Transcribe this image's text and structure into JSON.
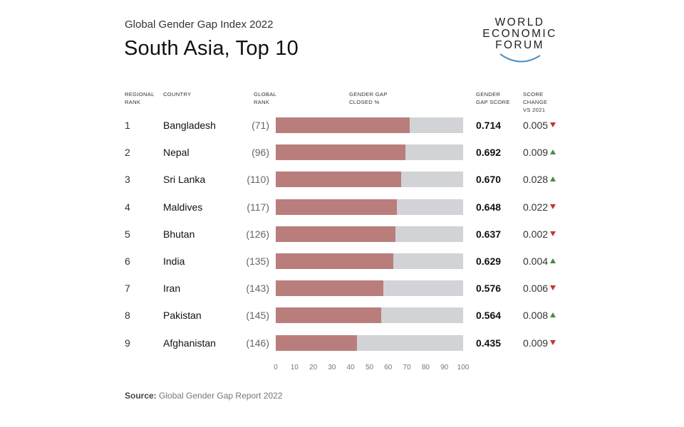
{
  "header": {
    "subtitle": "Global Gender Gap Index 2022",
    "title": "South Asia, Top 10",
    "logo": {
      "line1": "WORLD",
      "line2": "ECONOMIC",
      "line3": "FORUM"
    }
  },
  "columns": {
    "regional_rank": [
      "REGIONAL",
      "RANK"
    ],
    "country": [
      "COUNTRY"
    ],
    "global_rank": [
      "GLOBAL",
      "RANK"
    ],
    "gap_closed": [
      "GENDER GAP",
      "CLOSED %"
    ],
    "gap_score": [
      "GENDER",
      "GAP SCORE"
    ],
    "score_change": [
      "SCORE",
      "CHANGE",
      "VS 2021"
    ]
  },
  "colors": {
    "bar_fill": "#b97e7c",
    "bar_track": "#d1d3d6",
    "up": "#3f8f46",
    "down": "#c0392b"
  },
  "chart_data": {
    "type": "bar",
    "orientation": "horizontal",
    "title": "South Asia, Top 10",
    "subtitle": "Global Gender Gap Index 2022",
    "xlabel": "Gender gap closed %",
    "xlim": [
      0,
      100
    ],
    "xticks": [
      "0",
      "10",
      "20",
      "30",
      "40",
      "50",
      "60",
      "70",
      "80",
      "90",
      "100"
    ],
    "rows": [
      {
        "regional_rank": "1",
        "country": "Bangladesh",
        "global_rank": "(71)",
        "value": 71.4,
        "score": "0.714",
        "change": "0.005",
        "direction": "down"
      },
      {
        "regional_rank": "2",
        "country": "Nepal",
        "global_rank": "(96)",
        "value": 69.2,
        "score": "0.692",
        "change": "0.009",
        "direction": "up"
      },
      {
        "regional_rank": "3",
        "country": "Sri Lanka",
        "global_rank": "(110)",
        "value": 67.0,
        "score": "0.670",
        "change": "0.028",
        "direction": "up"
      },
      {
        "regional_rank": "4",
        "country": "Maldives",
        "global_rank": "(117)",
        "value": 64.8,
        "score": "0.648",
        "change": "0.022",
        "direction": "down"
      },
      {
        "regional_rank": "5",
        "country": "Bhutan",
        "global_rank": "(126)",
        "value": 63.7,
        "score": "0.637",
        "change": "0.002",
        "direction": "down"
      },
      {
        "regional_rank": "6",
        "country": "India",
        "global_rank": "(135)",
        "value": 62.9,
        "score": "0.629",
        "change": "0.004",
        "direction": "up"
      },
      {
        "regional_rank": "7",
        "country": "Iran",
        "global_rank": "(143)",
        "value": 57.6,
        "score": "0.576",
        "change": "0.006",
        "direction": "down"
      },
      {
        "regional_rank": "8",
        "country": "Pakistan",
        "global_rank": "(145)",
        "value": 56.4,
        "score": "0.564",
        "change": "0.008",
        "direction": "up"
      },
      {
        "regional_rank": "9",
        "country": "Afghanistan",
        "global_rank": "(146)",
        "value": 43.5,
        "score": "0.435",
        "change": "0.009",
        "direction": "down"
      }
    ]
  },
  "footer": {
    "source_label": "Source:",
    "source_text": "Global Gender Gap Report 2022"
  }
}
